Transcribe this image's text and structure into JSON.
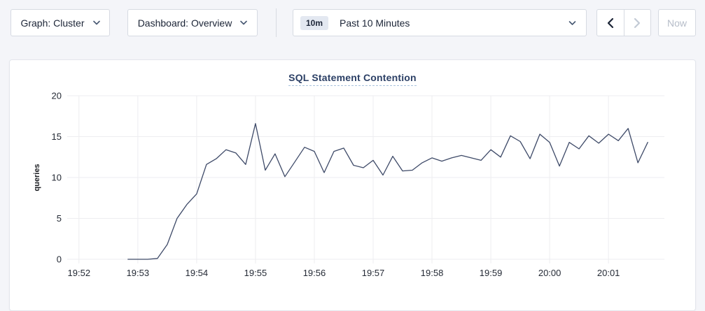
{
  "toolbar": {
    "graph_dropdown": {
      "label": "Graph: Cluster",
      "icon": "chevron-down-icon"
    },
    "dashboard_dropdown": {
      "label": "Dashboard: Overview",
      "icon": "chevron-down-icon"
    },
    "time_selector": {
      "badge": "10m",
      "label": "Past 10 Minutes",
      "icon": "chevron-down-icon"
    },
    "range_nav": {
      "prev_icon": "chevron-left-icon",
      "prev_enabled": true,
      "next_icon": "chevron-right-icon",
      "next_enabled": false
    },
    "now_button": {
      "label": "Now",
      "enabled": false
    }
  },
  "colors": {
    "page_bg": "#f4f5f9",
    "card_bg": "#ffffff",
    "control_border": "#d6dae2",
    "text": "#1b2436",
    "disabled_text": "#b6bdc9",
    "title": "#2c4066",
    "title_underline": "#a9c3dd",
    "grid": "#ededf0",
    "line": "#3e4a68",
    "badge_bg": "#e3e8f1",
    "axis_text": "#242a35"
  },
  "chart_data": {
    "type": "line",
    "title": "SQL Statement Contention",
    "ylabel": "queries",
    "ylim": [
      0,
      20
    ],
    "yticks": [
      0,
      5,
      10,
      15,
      20
    ],
    "xticks": [
      "19:52",
      "19:53",
      "19:54",
      "19:55",
      "19:56",
      "19:57",
      "19:58",
      "19:59",
      "20:00",
      "20:01"
    ],
    "x_unit": "seconds after 19:52:00",
    "x_range_seconds": [
      -12,
      597
    ],
    "grid": true,
    "legend": "none",
    "series": [
      {
        "name": "SQL Statement Contention",
        "color": "#3e4a68",
        "sample_interval_seconds": 10,
        "first_point_time": "19:52:50",
        "points": [
          [
            50,
            0
          ],
          [
            60,
            0
          ],
          [
            70,
            0
          ],
          [
            80,
            0.1
          ],
          [
            90,
            1.8
          ],
          [
            100,
            5
          ],
          [
            110,
            6.7
          ],
          [
            120,
            8
          ],
          [
            130,
            11.6
          ],
          [
            140,
            12.3
          ],
          [
            150,
            13.4
          ],
          [
            160,
            13
          ],
          [
            170,
            11.6
          ],
          [
            180,
            16.6
          ],
          [
            190,
            10.9
          ],
          [
            200,
            12.9
          ],
          [
            210,
            10.1
          ],
          [
            220,
            11.9
          ],
          [
            230,
            13.7
          ],
          [
            240,
            13.2
          ],
          [
            250,
            10.6
          ],
          [
            260,
            13.2
          ],
          [
            270,
            13.6
          ],
          [
            280,
            11.5
          ],
          [
            290,
            11.2
          ],
          [
            300,
            12.1
          ],
          [
            310,
            10.3
          ],
          [
            320,
            12.6
          ],
          [
            330,
            10.8
          ],
          [
            340,
            10.9
          ],
          [
            350,
            11.8
          ],
          [
            360,
            12.4
          ],
          [
            370,
            12
          ],
          [
            380,
            12.4
          ],
          [
            390,
            12.7
          ],
          [
            400,
            12.4
          ],
          [
            410,
            12.1
          ],
          [
            420,
            13.4
          ],
          [
            430,
            12.5
          ],
          [
            440,
            15.1
          ],
          [
            450,
            14.4
          ],
          [
            460,
            12.3
          ],
          [
            470,
            15.3
          ],
          [
            480,
            14.3
          ],
          [
            490,
            11.4
          ],
          [
            500,
            14.3
          ],
          [
            510,
            13.5
          ],
          [
            520,
            15.1
          ],
          [
            530,
            14.2
          ],
          [
            540,
            15.3
          ],
          [
            550,
            14.5
          ],
          [
            560,
            16
          ],
          [
            570,
            11.8
          ],
          [
            580,
            14.3
          ]
        ]
      }
    ]
  }
}
